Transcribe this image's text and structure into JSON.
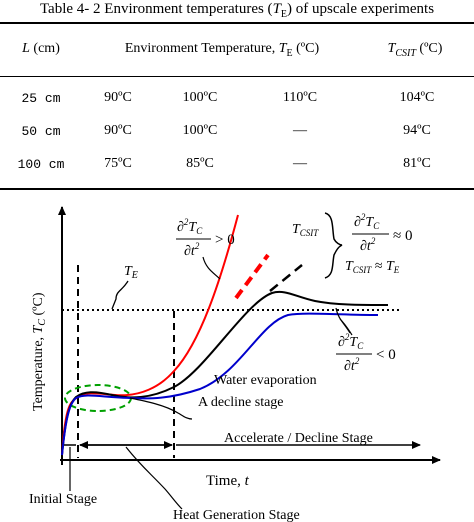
{
  "table": {
    "caption": "Table 4- 2 Environment temperatures (T_E) of upscale experiments",
    "headers": {
      "length": "L (cm)",
      "env_temp": "Environment Temperature, T_E (ºC)",
      "tcsit": "T_CSIT (ºC)"
    },
    "rows": [
      {
        "length": "25 cm",
        "t1": "90ºC",
        "t2": "100ºC",
        "t3": "110ºC",
        "tcsit": "104ºC"
      },
      {
        "length": "50 cm",
        "t1": "90ºC",
        "t2": "100ºC",
        "t3": "—",
        "tcsit": "94ºC"
      },
      {
        "length": "100 cm",
        "t1": "75ºC",
        "t2": "85ºC",
        "t3": "—",
        "tcsit": "81ºC"
      }
    ]
  },
  "figure": {
    "y_axis_label": "Temperature, T_C (ºC)",
    "x_axis_label": "Time, t",
    "labels": {
      "te": "T_E",
      "tcsit": "T_CSIT",
      "cond_pos": "∂²T_C/∂t² > 0",
      "cond_zero": "∂²T_C/∂t² ≈ 0",
      "cond_neg": "∂²T_C/∂t² < 0",
      "tcsit_approx": "T_CSIT ≈ T_E",
      "water_evaporation": "Water evaporation",
      "decline_stage": "A decline stage",
      "accelerate_decline": "Accelerate / Decline Stage",
      "initial_stage": "Initial Stage",
      "heat_generation": "Heat Generation Stage"
    },
    "colors": {
      "red_curve": "#ff0000",
      "black_curve": "#000000",
      "blue_curve": "#0000cc",
      "ellipse": "#00a000"
    }
  }
}
